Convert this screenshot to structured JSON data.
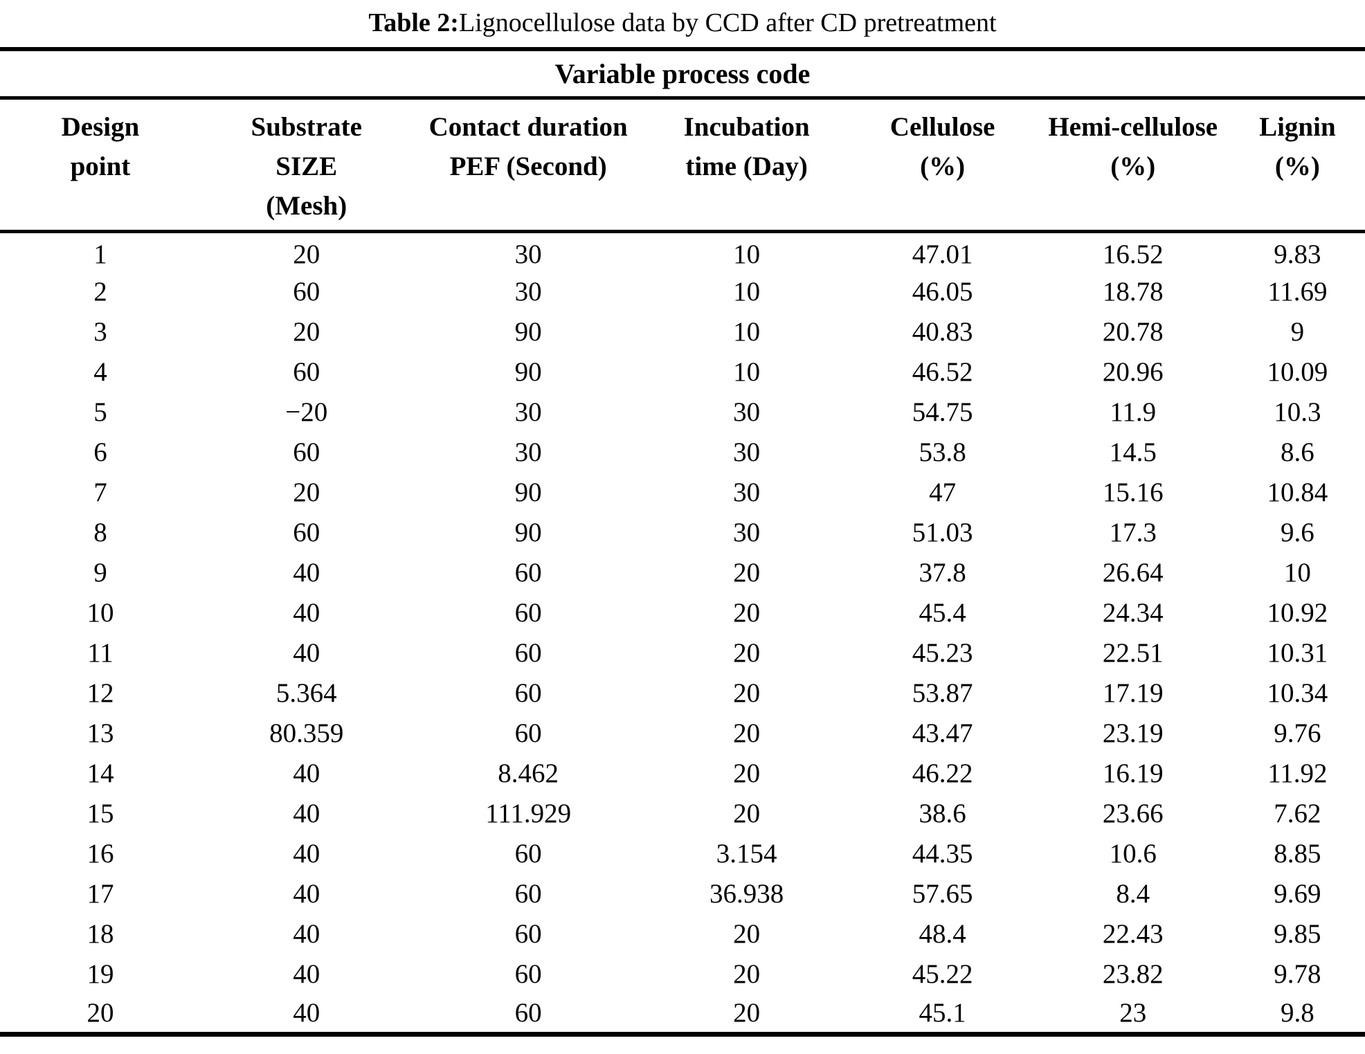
{
  "caption": {
    "label": "Table 2:",
    "text": "Lignocellulose data by CCD after CD pretreatment"
  },
  "table": {
    "span_header": "Variable process code",
    "columns": [
      {
        "header": "Design\npoint"
      },
      {
        "header": "Substrate\nSIZE\n(Mesh)"
      },
      {
        "header": "Contact duration\nPEF (Second)"
      },
      {
        "header": "Incubation\ntime (Day)"
      },
      {
        "header": "Cellulose\n(%)"
      },
      {
        "header": "Hemi-cellulose\n(%)"
      },
      {
        "header": "Lignin\n(%)"
      }
    ],
    "rows": [
      [
        "1",
        "20",
        "30",
        "10",
        "47.01",
        "16.52",
        "9.83"
      ],
      [
        "2",
        "60",
        "30",
        "10",
        "46.05",
        "18.78",
        "11.69"
      ],
      [
        "3",
        "20",
        "90",
        "10",
        "40.83",
        "20.78",
        "9"
      ],
      [
        "4",
        "60",
        "90",
        "10",
        "46.52",
        "20.96",
        "10.09"
      ],
      [
        "5",
        "−20",
        "30",
        "30",
        "54.75",
        "11.9",
        "10.3"
      ],
      [
        "6",
        "60",
        "30",
        "30",
        "53.8",
        "14.5",
        "8.6"
      ],
      [
        "7",
        "20",
        "90",
        "30",
        "47",
        "15.16",
        "10.84"
      ],
      [
        "8",
        "60",
        "90",
        "30",
        "51.03",
        "17.3",
        "9.6"
      ],
      [
        "9",
        "40",
        "60",
        "20",
        "37.8",
        "26.64",
        "10"
      ],
      [
        "10",
        "40",
        "60",
        "20",
        "45.4",
        "24.34",
        "10.92"
      ],
      [
        "11",
        "40",
        "60",
        "20",
        "45.23",
        "22.51",
        "10.31"
      ],
      [
        "12",
        "5.364",
        "60",
        "20",
        "53.87",
        "17.19",
        "10.34"
      ],
      [
        "13",
        "80.359",
        "60",
        "20",
        "43.47",
        "23.19",
        "9.76"
      ],
      [
        "14",
        "40",
        "8.462",
        "20",
        "46.22",
        "16.19",
        "11.92"
      ],
      [
        "15",
        "40",
        "111.929",
        "20",
        "38.6",
        "23.66",
        "7.62"
      ],
      [
        "16",
        "40",
        "60",
        "3.154",
        "44.35",
        "10.6",
        "8.85"
      ],
      [
        "17",
        "40",
        "60",
        "36.938",
        "57.65",
        "8.4",
        "9.69"
      ],
      [
        "18",
        "40",
        "60",
        "20",
        "48.4",
        "22.43",
        "9.85"
      ],
      [
        "19",
        "40",
        "60",
        "20",
        "45.22",
        "23.82",
        "9.78"
      ],
      [
        "20",
        "40",
        "60",
        "20",
        "45.1",
        "23",
        "9.8"
      ]
    ],
    "column_widths_pct": [
      14.7,
      15.5,
      17.0,
      15.0,
      13.7,
      14.2,
      9.9
    ]
  },
  "colors": {
    "text": "#000000",
    "background": "#ffffff",
    "rule": "#000000"
  }
}
